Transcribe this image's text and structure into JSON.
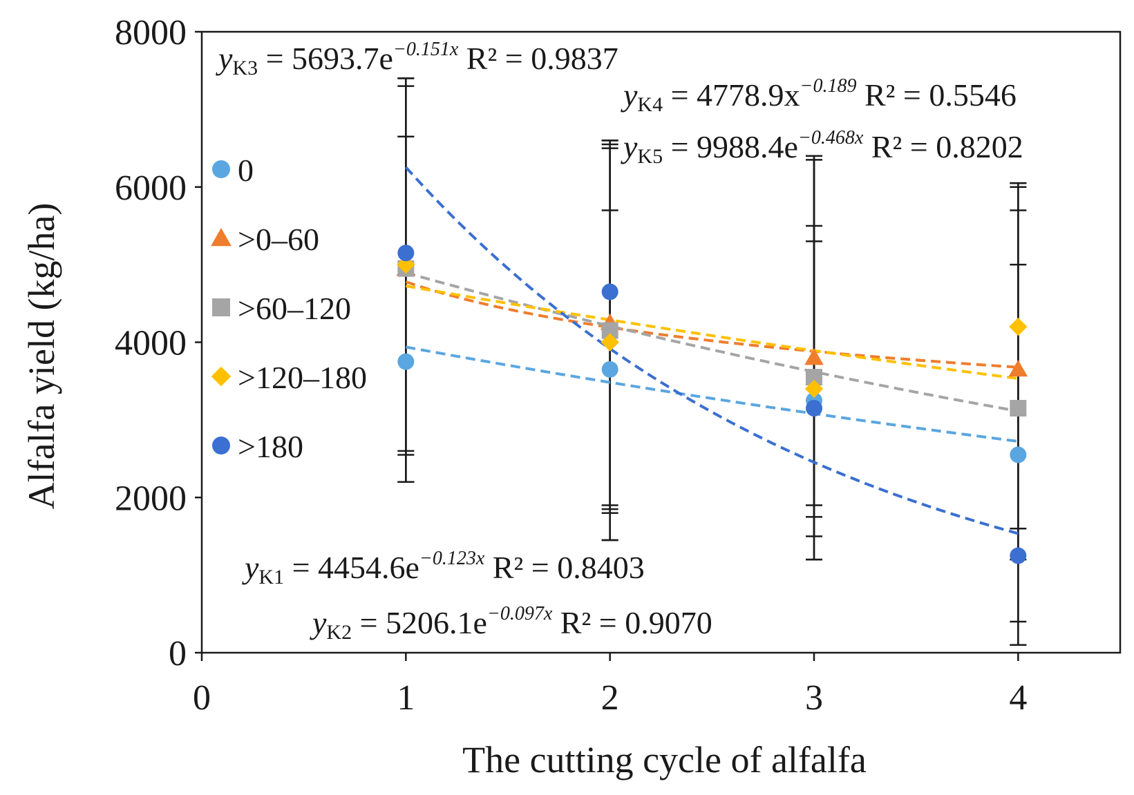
{
  "chart_data": {
    "type": "scatter",
    "title": "",
    "xlabel": "The cutting cycle of alfalfa",
    "ylabel": "Alfalfa yield (kg/ha)",
    "xlim": [
      0,
      4.5
    ],
    "ylim": [
      0,
      8000
    ],
    "x_ticks": [
      "0",
      "1",
      "2",
      "3",
      "4"
    ],
    "y_ticks": [
      "0",
      "2000",
      "4000",
      "6000",
      "8000"
    ],
    "x": [
      1,
      2,
      3,
      4
    ],
    "legend_position": "left",
    "series": [
      {
        "name": "0",
        "marker": "circle",
        "color": "#5aa6e0",
        "values": [
          3750,
          3650,
          3250,
          2550
        ],
        "trend": {
          "type": "exp",
          "a": 4454.6,
          "b": -0.123,
          "label_pre": "= 4454.6e",
          "exponent": "−0.123x",
          "r2": "R² = 0.8403",
          "sub": "K1"
        },
        "error_hi": [
          7400,
          6500,
          6400,
          5700
        ],
        "error_lo": [
          2200,
          1850,
          1750,
          400
        ]
      },
      {
        "name": ">0–60",
        "marker": "triangle",
        "color": "#ef7d2e",
        "values": [
          4950,
          4250,
          3800,
          3650
        ],
        "trend": {
          "type": "power",
          "a": 4778.9,
          "b": -0.189,
          "label_pre": "= 4778.9x",
          "exponent": "−0.189",
          "r2": "R² = 0.5546",
          "sub": "K4"
        },
        "error_hi": [
          7300,
          6600,
          6350,
          6050
        ],
        "error_lo": [
          2600,
          1900,
          1500,
          1200
        ]
      },
      {
        "name": ">60–120",
        "marker": "square",
        "color": "#a5a5a5",
        "values": [
          4950,
          4150,
          3550,
          3150
        ],
        "trend": {
          "type": "exp",
          "a": 5693.7,
          "b": -0.151,
          "label_pre": "= 5693.7e",
          "exponent": "−0.151x",
          "r2": "R² = 0.9837",
          "sub": "K3"
        },
        "error_hi": [
          6650,
          5700,
          5500,
          5000
        ],
        "error_lo": [
          2550,
          1800,
          1900,
          1600
        ]
      },
      {
        "name": ">120–180",
        "marker": "diamond",
        "color": "#ffc000",
        "values": [
          5000,
          4000,
          3400,
          4200
        ],
        "trend": {
          "type": "exp",
          "a": 5206.1,
          "b": -0.097,
          "label_pre": "= 5206.1e",
          "exponent": "−0.097x",
          "r2": "R² = 0.9070",
          "sub": "K2"
        },
        "error_hi": [
          6650,
          6550,
          5300,
          6000
        ],
        "error_lo": [
          2200,
          1450,
          1200,
          100
        ]
      },
      {
        "name": ">180",
        "marker": "circle",
        "color": "#3b6fd1",
        "values": [
          5150,
          4650,
          3150,
          1250
        ],
        "trend": {
          "type": "exp",
          "a": 9988.4,
          "b": -0.468,
          "label_pre": "= 9988.4e",
          "exponent": "−0.468x",
          "r2": "R² = 0.8202",
          "sub": "K5"
        },
        "error_hi": [
          7400,
          6600,
          6400,
          6050
        ],
        "error_lo": [
          2200,
          1450,
          1200,
          100
        ]
      }
    ],
    "equation_order": [
      "K3",
      "K4",
      "K5",
      "K1",
      "K2"
    ]
  }
}
